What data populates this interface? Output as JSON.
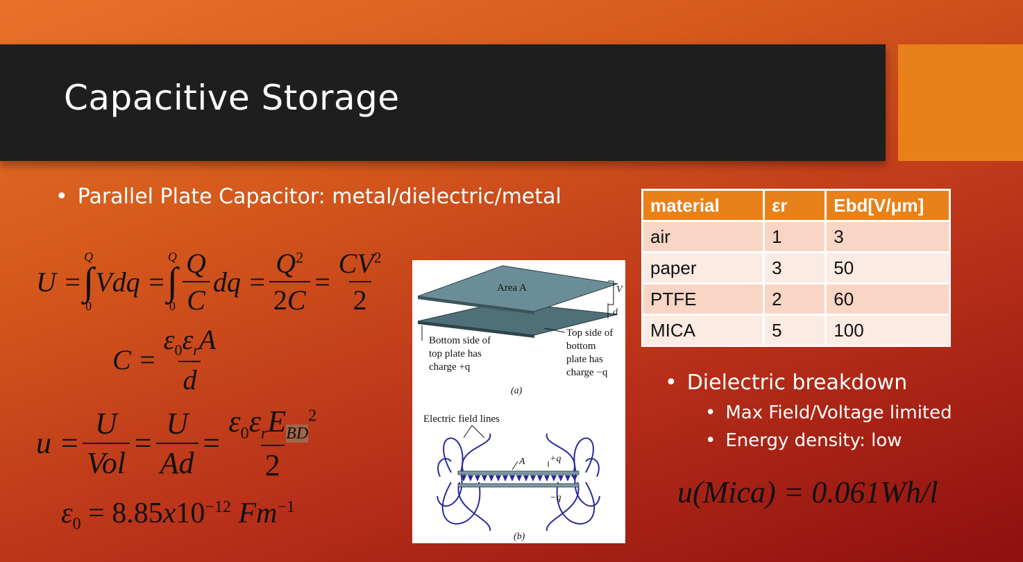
{
  "slide": {
    "title": "Capacitive Storage",
    "bullets": [
      "Parallel Plate Capacitor: metal/dielectric/metal",
      "Dielectric breakdown",
      "Max Field/Voltage limited",
      "Energy density: low"
    ]
  },
  "equations": {
    "u_mica": "u(Mica) = 0.061Wh/l"
  },
  "table": {
    "headers": [
      "material",
      "εr",
      "Ebd[V/μm]"
    ],
    "rows": [
      [
        "air",
        "1",
        "3"
      ],
      [
        "paper",
        "3",
        "50"
      ],
      [
        "PTFE",
        "2",
        "60"
      ],
      [
        "MICA",
        "5",
        "100"
      ]
    ]
  },
  "figure": {
    "area_label": "Area A",
    "v_label": "V",
    "d_label": "d",
    "bottom_side_label": [
      "Bottom side of",
      "top plate has",
      "charge +q"
    ],
    "top_side_label": [
      "Top side of",
      "bottom",
      "plate has",
      "charge −q"
    ],
    "caption_a": "(a)",
    "field_lines_label": "Electric field lines",
    "a_label": "A",
    "plus_q": "+q",
    "minus_q": "−q",
    "caption_b": "(b)"
  },
  "colors": {
    "title_bar": "#1e1e1e",
    "accent": "#e8811a",
    "table_header": "#e8811a",
    "plate_fill": "#5f7f8a",
    "field_line": "#2a2a9a"
  }
}
